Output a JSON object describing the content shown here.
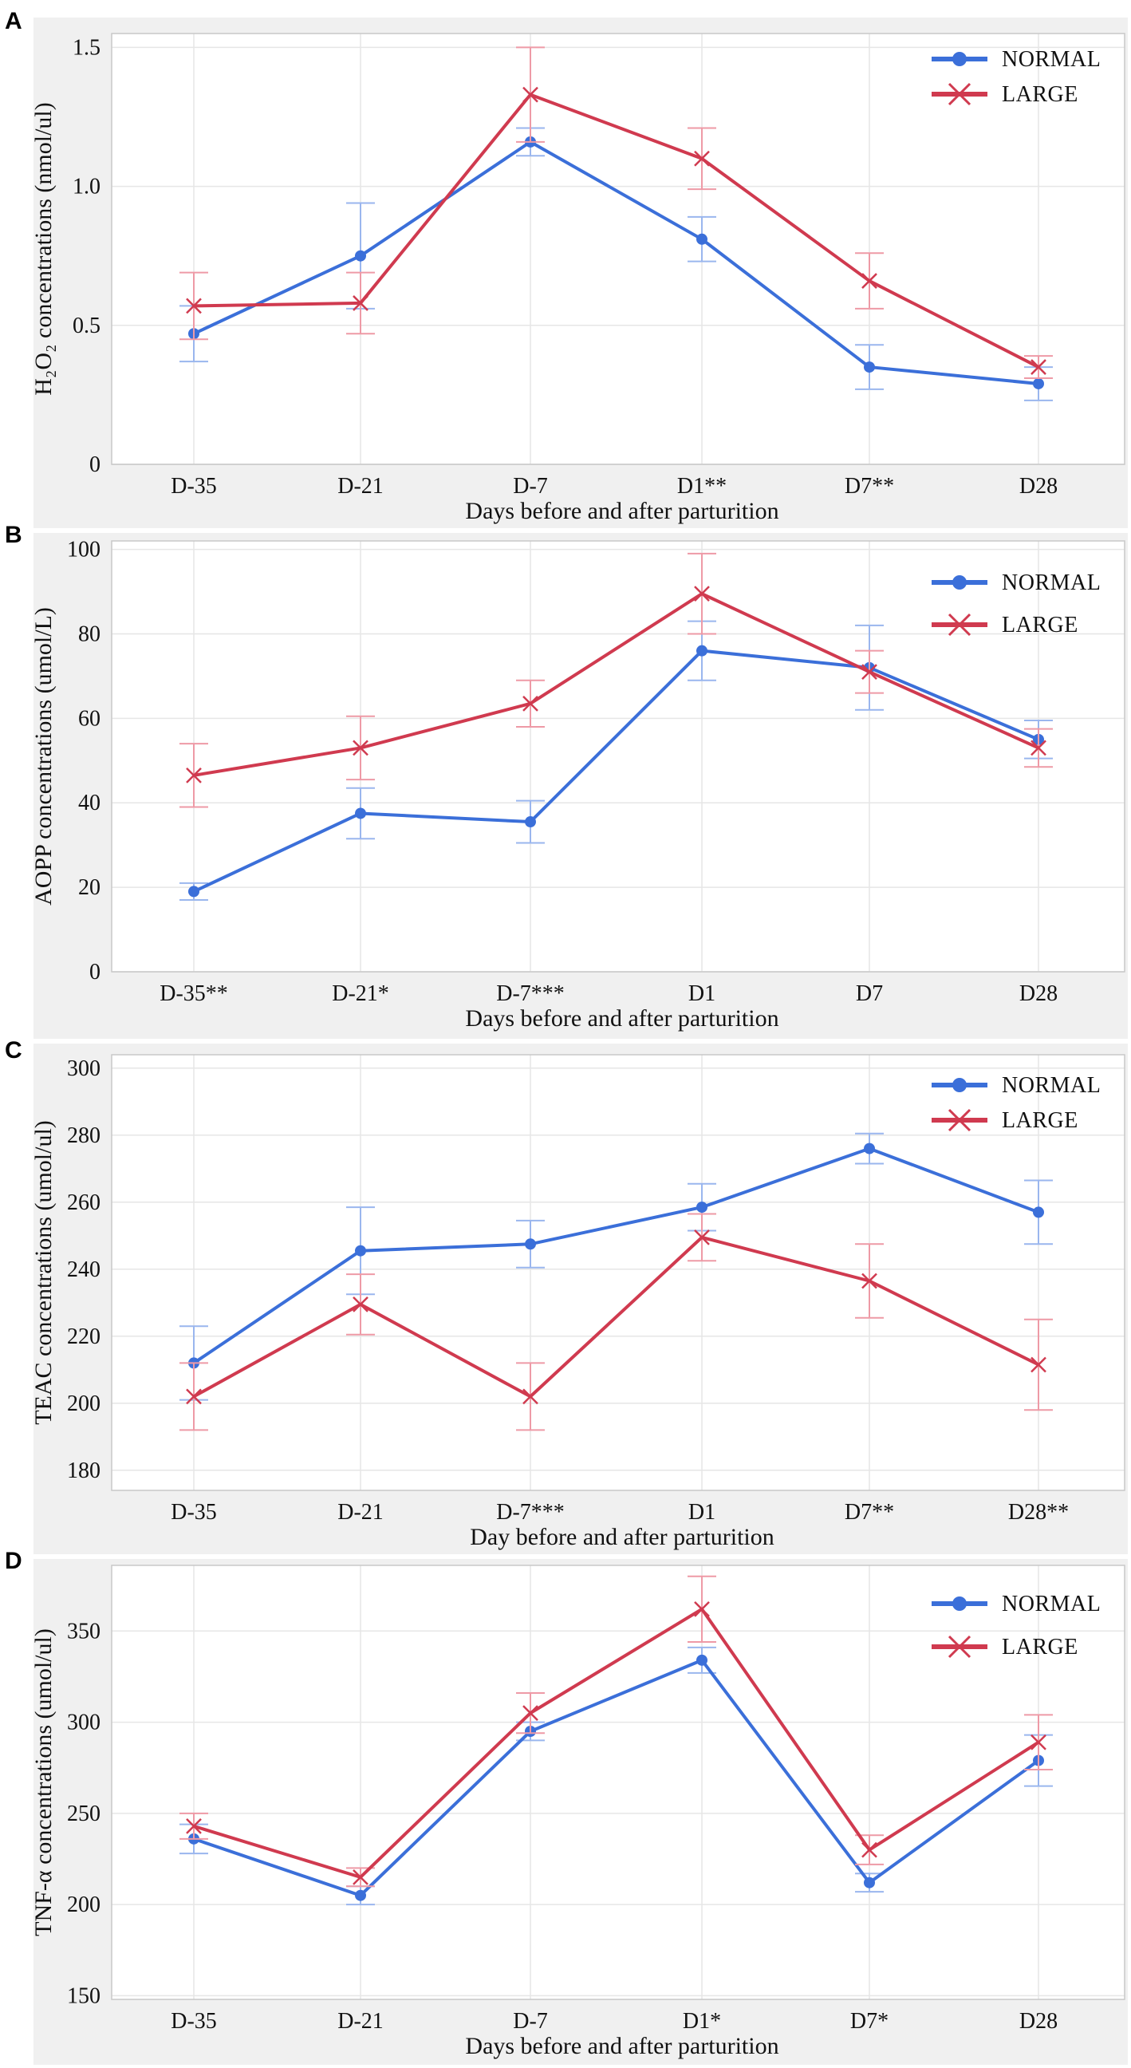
{
  "colors": {
    "normal": "#3b6fd9",
    "large": "#d03a4f",
    "normal_light": "#9ab6ee",
    "large_light": "#ee9aa6"
  },
  "chart_data": [
    {
      "panel": "A",
      "type": "line",
      "title": "",
      "xlabel": "Days before and after parturition",
      "ylabel": "H₂O₂ concentrations (nmol/ul)",
      "categories": [
        "D-35",
        "D-21",
        "D-7",
        "D1**",
        "D7**",
        "D28"
      ],
      "ylim": [
        0,
        1.55
      ],
      "yticks": [
        0,
        0.5,
        1.0,
        1.5
      ],
      "ytick_labels": [
        "0",
        "0.5",
        "1.0",
        "1.5"
      ],
      "legend_position": "top-right",
      "series": [
        {
          "name": "NORMAL",
          "marker": "dot",
          "values": [
            0.47,
            0.75,
            1.16,
            0.81,
            0.35,
            0.29
          ],
          "err": [
            0.1,
            0.19,
            0.05,
            0.08,
            0.08,
            0.06
          ]
        },
        {
          "name": "LARGE",
          "marker": "x",
          "values": [
            0.57,
            0.58,
            1.33,
            1.1,
            0.66,
            0.35
          ],
          "err": [
            0.12,
            0.11,
            0.17,
            0.11,
            0.1,
            0.04
          ]
        }
      ]
    },
    {
      "panel": "B",
      "type": "line",
      "title": "",
      "xlabel": "Days before and after parturition",
      "ylabel": "AOPP concentrations (umol/L)",
      "categories": [
        "D-35**",
        "D-21*",
        "D-7***",
        "D1",
        "D7",
        "D28"
      ],
      "ylim": [
        0,
        102
      ],
      "yticks": [
        0,
        20,
        40,
        60,
        80,
        100
      ],
      "ytick_labels": [
        "0",
        "20",
        "40",
        "60",
        "80",
        "100"
      ],
      "legend_position": "top-right",
      "series": [
        {
          "name": "NORMAL",
          "marker": "dot",
          "values": [
            19,
            37.5,
            35.5,
            76,
            72,
            55
          ],
          "err": [
            2,
            6,
            5,
            7,
            10,
            4.5
          ]
        },
        {
          "name": "LARGE",
          "marker": "x",
          "values": [
            46.5,
            53,
            63.5,
            89.5,
            71,
            53
          ],
          "err": [
            7.5,
            7.5,
            5.5,
            9.5,
            5,
            4.5
          ]
        }
      ]
    },
    {
      "panel": "C",
      "type": "line",
      "title": "",
      "xlabel": "Day before and after parturition",
      "ylabel": "TEAC concentrations (umol/ul)",
      "categories": [
        "D-35",
        "D-21",
        "D-7***",
        "D1",
        "D7**",
        "D28**"
      ],
      "ylim": [
        174,
        304
      ],
      "yticks": [
        180,
        200,
        220,
        240,
        260,
        280,
        300
      ],
      "ytick_labels": [
        "180",
        "200",
        "220",
        "240",
        "260",
        "280",
        "300"
      ],
      "legend_position": "top-right",
      "series": [
        {
          "name": "NORMAL",
          "marker": "dot",
          "values": [
            212,
            245.5,
            247.5,
            258.5,
            276,
            257
          ],
          "err": [
            11,
            13,
            7,
            7,
            4.5,
            9.5
          ]
        },
        {
          "name": "LARGE",
          "marker": "x",
          "values": [
            202,
            229.5,
            202,
            249.5,
            236.5,
            211.5
          ],
          "err": [
            10,
            9,
            10,
            7,
            11,
            13.5
          ]
        }
      ]
    },
    {
      "panel": "D",
      "type": "line",
      "title": "",
      "xlabel": "Days before and after parturition",
      "ylabel": "TNF-α concentrations (umol/ul)",
      "categories": [
        "D-35",
        "D-21",
        "D-7",
        "D1*",
        "D7*",
        "D28"
      ],
      "ylim": [
        148,
        386
      ],
      "yticks": [
        150,
        200,
        250,
        300,
        350
      ],
      "ytick_labels": [
        "150",
        "200",
        "250",
        "300",
        "350"
      ],
      "legend_position": "top-right",
      "series": [
        {
          "name": "NORMAL",
          "marker": "dot",
          "values": [
            236,
            205,
            295,
            334,
            212,
            279
          ],
          "err": [
            8,
            5,
            5,
            7,
            5,
            14
          ]
        },
        {
          "name": "LARGE",
          "marker": "x",
          "values": [
            243,
            215,
            305,
            362,
            230,
            289
          ],
          "err": [
            7,
            5,
            11,
            18,
            8,
            15
          ]
        }
      ]
    }
  ]
}
